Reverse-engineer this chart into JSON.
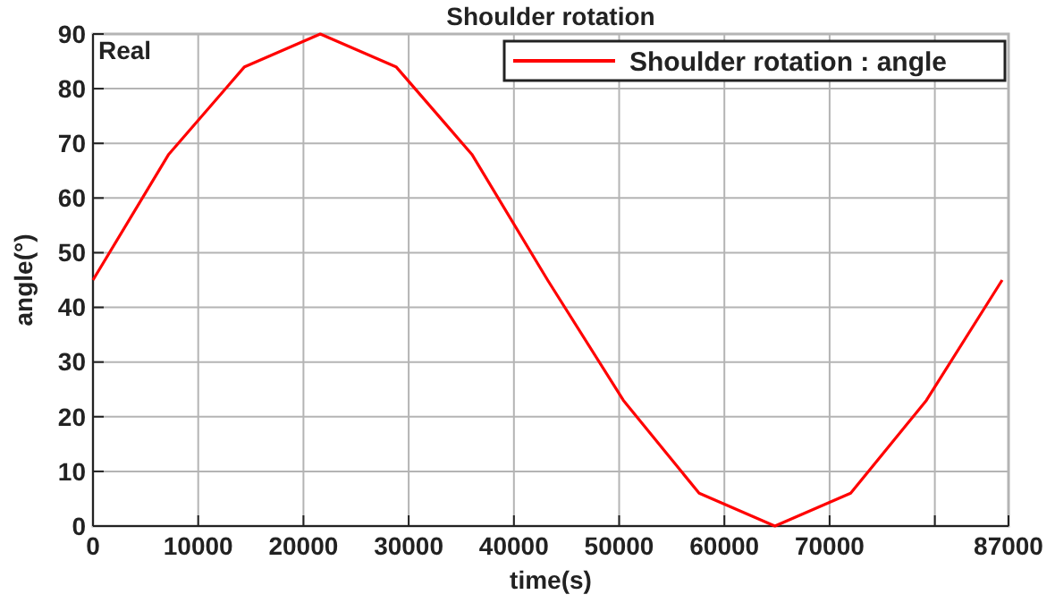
{
  "chart_data": {
    "type": "line",
    "title": "Shoulder rotation",
    "xlabel": "time(s)",
    "ylabel": "angle(°)",
    "annotations": [
      "Real"
    ],
    "x": [
      0,
      7200,
      14400,
      21600,
      28800,
      36000,
      43200,
      50400,
      57600,
      64800,
      72000,
      79200,
      86400
    ],
    "series": [
      {
        "name": "Shoulder rotation : angle",
        "color": "#ff0000",
        "values": [
          45,
          68,
          84,
          90,
          84,
          68,
          45,
          23,
          6,
          0,
          6,
          23,
          45
        ]
      }
    ],
    "xlim": [
      0,
      87000
    ],
    "xticks": [
      0,
      10000,
      20000,
      30000,
      40000,
      50000,
      60000,
      70000,
      {
        "value": 80000,
        "label": null
      },
      {
        "value": 87000,
        "label": "87000"
      }
    ],
    "ylim": [
      0,
      90
    ],
    "yticks": [
      0,
      10,
      20,
      30,
      40,
      50,
      60,
      70,
      80,
      90
    ],
    "grid": true,
    "legend": "top right",
    "marker": "none",
    "line_style": "solid"
  }
}
